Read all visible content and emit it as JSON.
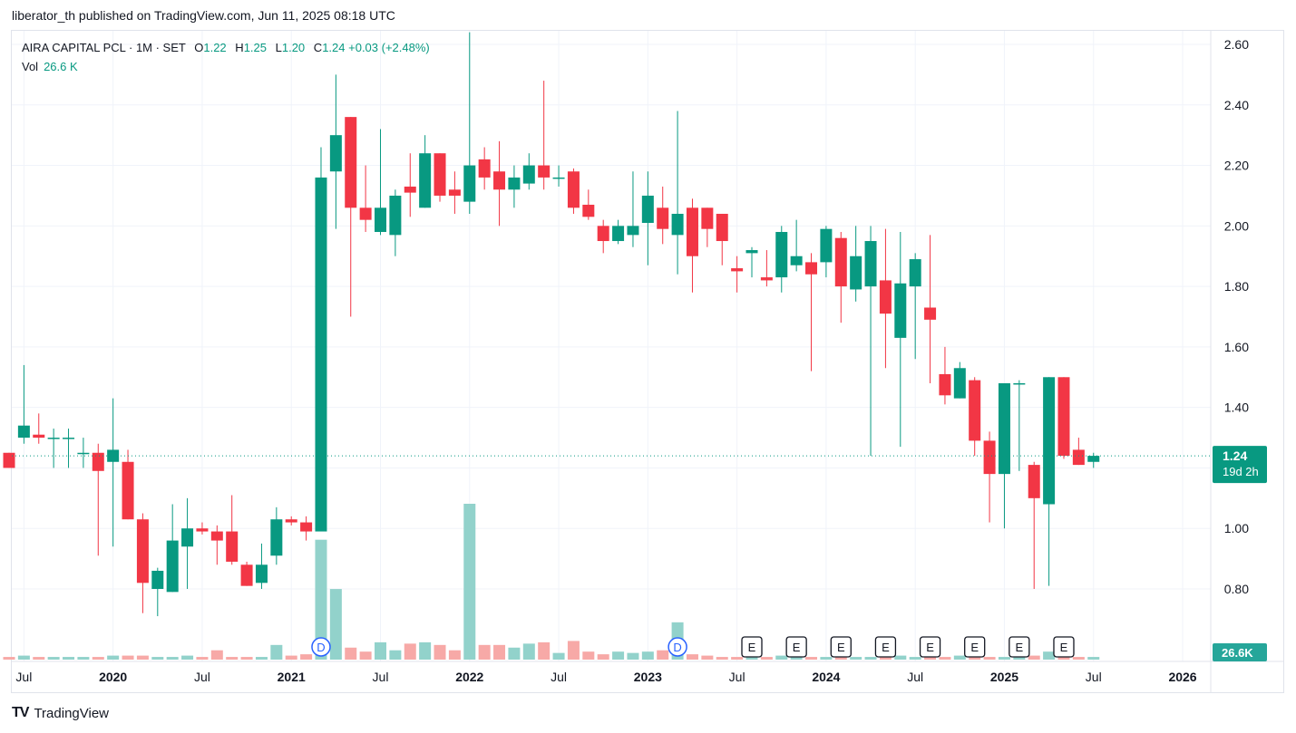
{
  "publisher": "liberator_th published on TradingView.com, Jun 11, 2025 08:18 UTC",
  "legend": {
    "symbol": "AIRA CAPITAL PCL · 1M · SET",
    "o_label": "O",
    "o_value": "1.22",
    "h_label": "H",
    "h_value": "1.25",
    "l_label": "L",
    "l_value": "1.20",
    "c_label": "C",
    "c_value": "1.24",
    "change": "+0.03 (+2.48%)",
    "vol_label": "Vol",
    "vol_value": "26.6 K"
  },
  "footer": {
    "logo": "TV",
    "brand": "TradingView"
  },
  "colors": {
    "up": "#089981",
    "down": "#f23645",
    "up_vol": "#92d2cb",
    "down_vol": "#f7a9a7",
    "grid": "#f0f3fa",
    "axis_text": "#131722"
  },
  "chart_data": {
    "type": "candlestick",
    "interval": "1M",
    "start_month": "2019-06",
    "y_axis_ticks": [
      "0.80",
      "1.00",
      "1.20",
      "1.40",
      "1.60",
      "1.80",
      "2.00",
      "2.20",
      "2.40",
      "2.60"
    ],
    "y_range": [
      0.7,
      2.65
    ],
    "x_axis_labels": [
      {
        "text": "Jul",
        "date": "2019-07"
      },
      {
        "text": "2020",
        "date": "2020-01"
      },
      {
        "text": "Jul",
        "date": "2020-07"
      },
      {
        "text": "2021",
        "date": "2021-01"
      },
      {
        "text": "Jul",
        "date": "2021-07"
      },
      {
        "text": "2022",
        "date": "2022-01"
      },
      {
        "text": "Jul",
        "date": "2022-07"
      },
      {
        "text": "2023",
        "date": "2023-01"
      },
      {
        "text": "Jul",
        "date": "2023-07"
      },
      {
        "text": "2024",
        "date": "2024-01"
      },
      {
        "text": "Jul",
        "date": "2024-07"
      },
      {
        "text": "2025",
        "date": "2025-01"
      },
      {
        "text": "Jul",
        "date": "2025-07"
      },
      {
        "text": "2026",
        "date": "2026-01"
      }
    ],
    "last_price_label": "1.24",
    "countdown_label": "19d 2h",
    "last_price": 1.24,
    "volume_label": "26.6K",
    "events": [
      {
        "type": "D",
        "date": "2021-03"
      },
      {
        "type": "D",
        "date": "2023-03"
      },
      {
        "type": "E",
        "date": "2023-08"
      },
      {
        "type": "E",
        "date": "2023-11"
      },
      {
        "type": "E",
        "date": "2024-02"
      },
      {
        "type": "E",
        "date": "2024-05"
      },
      {
        "type": "E",
        "date": "2024-08"
      },
      {
        "type": "E",
        "date": "2024-11"
      },
      {
        "type": "E",
        "date": "2025-02"
      },
      {
        "type": "E",
        "date": "2025-05"
      }
    ],
    "candles": [
      [
        1.25,
        1.25,
        1.2,
        1.2,
        2
      ],
      [
        1.3,
        1.54,
        1.28,
        1.34,
        3
      ],
      [
        1.31,
        1.38,
        1.28,
        1.3,
        2
      ],
      [
        1.3,
        1.33,
        1.2,
        1.3,
        2
      ],
      [
        1.3,
        1.33,
        1.2,
        1.3,
        2
      ],
      [
        1.25,
        1.3,
        1.2,
        1.25,
        2
      ],
      [
        1.25,
        1.28,
        0.91,
        1.19,
        2
      ],
      [
        1.22,
        1.43,
        0.94,
        1.26,
        3
      ],
      [
        1.22,
        1.26,
        1.03,
        1.03,
        3
      ],
      [
        1.03,
        1.05,
        0.72,
        0.82,
        3
      ],
      [
        0.8,
        0.87,
        0.71,
        0.86,
        2
      ],
      [
        0.79,
        1.08,
        0.79,
        0.96,
        2
      ],
      [
        0.94,
        1.1,
        0.8,
        1.0,
        3
      ],
      [
        1.0,
        1.02,
        0.98,
        0.99,
        2
      ],
      [
        0.99,
        1.01,
        0.88,
        0.96,
        7
      ],
      [
        0.99,
        1.11,
        0.88,
        0.89,
        2
      ],
      [
        0.88,
        0.89,
        0.81,
        0.81,
        2
      ],
      [
        0.82,
        0.95,
        0.8,
        0.88,
        2
      ],
      [
        0.91,
        1.07,
        0.88,
        1.03,
        11
      ],
      [
        1.03,
        1.04,
        1.01,
        1.02,
        3
      ],
      [
        1.02,
        1.04,
        0.96,
        0.99,
        4
      ],
      [
        0.99,
        2.26,
        0.99,
        2.16,
        90
      ],
      [
        2.18,
        2.5,
        1.99,
        2.3,
        53
      ],
      [
        2.36,
        2.36,
        1.7,
        2.06,
        9
      ],
      [
        2.06,
        2.2,
        1.98,
        2.02,
        6
      ],
      [
        1.98,
        2.32,
        1.97,
        2.06,
        13
      ],
      [
        1.97,
        2.12,
        1.9,
        2.1,
        7
      ],
      [
        2.13,
        2.24,
        2.03,
        2.11,
        12
      ],
      [
        2.06,
        2.3,
        2.06,
        2.24,
        13
      ],
      [
        2.24,
        2.24,
        2.08,
        2.1,
        11
      ],
      [
        2.12,
        2.18,
        2.04,
        2.1,
        7
      ],
      [
        2.08,
        2.64,
        2.04,
        2.2,
        117
      ],
      [
        2.22,
        2.26,
        2.12,
        2.16,
        11
      ],
      [
        2.18,
        2.28,
        2.0,
        2.12,
        11
      ],
      [
        2.12,
        2.2,
        2.06,
        2.16,
        9
      ],
      [
        2.14,
        2.24,
        2.12,
        2.2,
        12
      ],
      [
        2.2,
        2.48,
        2.12,
        2.16,
        13
      ],
      [
        2.16,
        2.2,
        2.13,
        2.16,
        5
      ],
      [
        2.18,
        2.19,
        2.04,
        2.06,
        14
      ],
      [
        2.07,
        2.12,
        2.02,
        2.03,
        6
      ],
      [
        2.0,
        2.02,
        1.91,
        1.95,
        4
      ],
      [
        1.95,
        2.02,
        1.94,
        2.0,
        6
      ],
      [
        1.97,
        2.18,
        1.93,
        2.0,
        5
      ],
      [
        2.01,
        2.18,
        1.87,
        2.1,
        6
      ],
      [
        2.06,
        2.13,
        1.94,
        1.99,
        7
      ],
      [
        1.97,
        2.38,
        1.84,
        2.04,
        28
      ],
      [
        2.06,
        2.09,
        1.78,
        1.9,
        4
      ],
      [
        2.06,
        2.06,
        1.93,
        1.99,
        3
      ],
      [
        2.04,
        2.04,
        1.87,
        1.95,
        2
      ],
      [
        1.86,
        1.9,
        1.78,
        1.85,
        2
      ],
      [
        1.91,
        1.93,
        1.83,
        1.92,
        2
      ],
      [
        1.83,
        1.92,
        1.8,
        1.82,
        2
      ],
      [
        1.83,
        2.0,
        1.78,
        1.98,
        3
      ],
      [
        1.87,
        2.02,
        1.85,
        1.9,
        2
      ],
      [
        1.88,
        1.91,
        1.52,
        1.84,
        2
      ],
      [
        1.88,
        2.0,
        1.83,
        1.99,
        2
      ],
      [
        1.96,
        1.98,
        1.68,
        1.8,
        2
      ],
      [
        1.79,
        2.0,
        1.75,
        1.9,
        2
      ],
      [
        1.8,
        2.0,
        1.24,
        1.95,
        2
      ],
      [
        1.82,
        1.99,
        1.53,
        1.71,
        3
      ],
      [
        1.63,
        1.98,
        1.27,
        1.81,
        3
      ],
      [
        1.8,
        1.91,
        1.56,
        1.89,
        2
      ],
      [
        1.73,
        1.97,
        1.48,
        1.69,
        3
      ],
      [
        1.51,
        1.6,
        1.41,
        1.44,
        2
      ],
      [
        1.43,
        1.55,
        1.43,
        1.53,
        3
      ],
      [
        1.49,
        1.5,
        1.24,
        1.29,
        3
      ],
      [
        1.29,
        1.32,
        1.02,
        1.18,
        2
      ],
      [
        1.18,
        1.48,
        1.0,
        1.48,
        2
      ],
      [
        1.48,
        1.49,
        1.19,
        1.48,
        3
      ],
      [
        1.21,
        1.22,
        0.8,
        1.1,
        3
      ],
      [
        1.08,
        1.5,
        0.81,
        1.5,
        6
      ],
      [
        1.5,
        1.5,
        1.23,
        1.24,
        3
      ],
      [
        1.26,
        1.3,
        1.21,
        1.21,
        2
      ],
      [
        1.22,
        1.25,
        1.2,
        1.24,
        2
      ]
    ]
  }
}
